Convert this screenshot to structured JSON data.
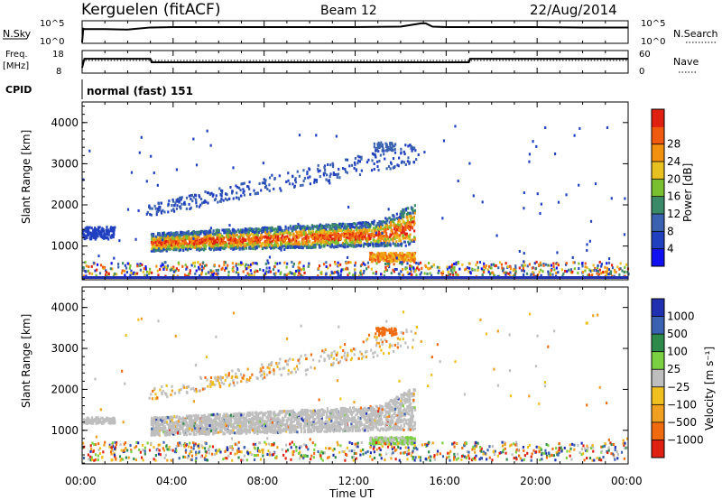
{
  "header": {
    "station": "Kerguelen (fitACF)",
    "beam": "Beam 12",
    "date": "22/Aug/2014"
  },
  "panel_labels": {
    "nsky": "N.Sky",
    "nsearch": "N.Search",
    "freq_line1": "Freq.",
    "freq_line2": "[MHz]",
    "nave": "Nave",
    "cpid": "CPID",
    "cpid_text": "normal (fast) 151"
  },
  "colorbars": {
    "power": {
      "label": "Power [dB]",
      "ticks": [
        "4",
        "8",
        "12",
        "16",
        "20",
        "24",
        "28"
      ],
      "colors": [
        "#1010f0",
        "#2040c0",
        "#3a62b0",
        "#3a8a6a",
        "#7abf30",
        "#e8c020",
        "#f29010",
        "#f05a10",
        "#e02010"
      ]
    },
    "velocity": {
      "label": "Velocity [m s⁻¹]",
      "ticks": [
        "1000",
        "500",
        "100",
        "25",
        "−25",
        "−100",
        "−500",
        "−1000"
      ],
      "colors": [
        "#2030b0",
        "#3a62b0",
        "#2e8a4a",
        "#7ad040",
        "#bebebe",
        "#f0c020",
        "#f0a020",
        "#f06a10",
        "#e02010"
      ]
    }
  },
  "chart_data": [
    {
      "type": "line",
      "panel": "N.Sky / N.Search",
      "y_ticks_left": [
        "10^5",
        "10^0"
      ],
      "y_ticks_right": [
        "10^5",
        "10^0"
      ],
      "series": [
        {
          "x": [
            0.0,
            0.05,
            0.1,
            1.0,
            2.0,
            3.0,
            4.0,
            6.0,
            8.0,
            10.0,
            12.0,
            14.0,
            14.9,
            15.0,
            15.1,
            15.4,
            16.0,
            18.0,
            20.0,
            22.0,
            24.0
          ],
          "y": [
            0.0,
            3.3,
            3.2,
            3.2,
            3.1,
            3.6,
            3.7,
            3.7,
            3.7,
            3.7,
            3.7,
            3.8,
            4.6,
            4.6,
            4.6,
            3.8,
            3.7,
            3.7,
            3.7,
            3.6,
            3.6
          ]
        }
      ]
    },
    {
      "type": "line",
      "panel": "Freq. [MHz] / Nave",
      "y_ticks_left": [
        "18",
        "8"
      ],
      "y_ticks_right": [
        "60",
        "0"
      ],
      "series": [
        {
          "name": "Freq.",
          "x": [
            0.0,
            0.1,
            3.0,
            3.05,
            17.0,
            17.05,
            24.0
          ],
          "y": [
            8.0,
            13.5,
            13.5,
            11.3,
            11.3,
            13.5,
            13.5
          ]
        },
        {
          "name": "Nave",
          "x": [
            0.0,
            24.0
          ],
          "y": [
            30,
            30
          ]
        }
      ]
    },
    {
      "type": "heatmap",
      "title": "Power",
      "xlabel": "",
      "ylabel": "Slant Range [km]",
      "x_range": [
        0,
        24
      ],
      "ylim": [
        180,
        4500
      ],
      "x_ticks": [],
      "y_ticks": [
        "1000",
        "2000",
        "3000",
        "4000"
      ],
      "grid": false
    },
    {
      "type": "heatmap",
      "title": "Velocity",
      "xlabel": "Time UT",
      "ylabel": "Slant Range [km]",
      "x_range": [
        0,
        24
      ],
      "ylim": [
        180,
        4500
      ],
      "x_ticks": [
        "00:00",
        "04:00",
        "08:00",
        "12:00",
        "16:00",
        "20:00",
        "00:00"
      ],
      "y_ticks": [
        "1000",
        "2000",
        "3000",
        "4000"
      ],
      "grid": false
    }
  ]
}
